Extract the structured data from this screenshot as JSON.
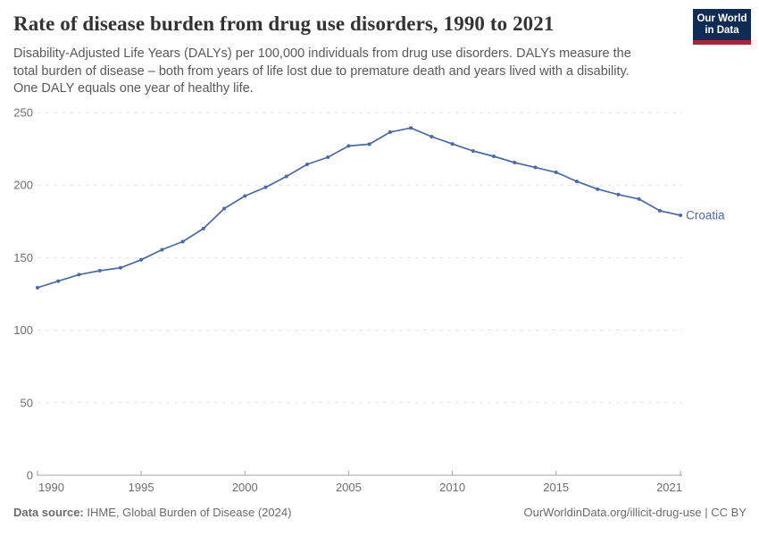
{
  "header": {
    "title": "Rate of disease burden from drug use disorders, 1990 to 2021",
    "subtitle_lines": [
      "Disability-Adjusted Life Years (DALYs) per 100,000 individuals from drug use disorders. DALYs measure the",
      "total burden of disease – both from years of life lost due to premature death and years lived with a disability.",
      "One DALY equals one year of healthy life."
    ],
    "logo": {
      "line1": "Our World",
      "line2": "in Data"
    }
  },
  "chart_data": {
    "type": "line",
    "title": "Rate of disease burden from drug use disorders, 1990 to 2021",
    "xlabel": "",
    "ylabel": "DALYs per 100,000 individuals",
    "xlim": [
      1990,
      2021
    ],
    "ylim": [
      0,
      250
    ],
    "x_ticks": [
      1990,
      1995,
      2000,
      2005,
      2010,
      2015,
      2021
    ],
    "y_ticks": [
      0,
      50,
      100,
      150,
      200,
      250
    ],
    "grid": "horizontal-dashed",
    "legend_position": "end-of-line-label",
    "x": [
      1990,
      1991,
      1992,
      1993,
      1994,
      1995,
      1996,
      1997,
      1998,
      1999,
      2000,
      2001,
      2002,
      2003,
      2004,
      2005,
      2006,
      2007,
      2008,
      2009,
      2010,
      2011,
      2012,
      2013,
      2014,
      2015,
      2016,
      2017,
      2018,
      2019,
      2020,
      2021
    ],
    "series": [
      {
        "name": "Croatia",
        "color": "#4b69a5",
        "values": [
          129.3,
          133.8,
          138.3,
          141.0,
          143.0,
          148.5,
          155.5,
          161.0,
          170.0,
          183.8,
          192.5,
          198.5,
          206.0,
          214.3,
          219.2,
          227.0,
          228.2,
          236.5,
          239.4,
          233.4,
          228.4,
          223.5,
          219.8,
          215.5,
          212.2,
          208.8,
          202.5,
          197.2,
          193.5,
          190.4,
          182.3,
          179.2
        ]
      }
    ]
  },
  "footer": {
    "source_label": "Data source:",
    "source_text": "IHME, Global Burden of Disease (2024)",
    "credit": "OurWorldinData.org/illicit-drug-use | CC BY"
  },
  "colors": {
    "line": "#4b69a5",
    "grid": "#e3e3e3",
    "axis": "#a3a3a3",
    "tick_label": "#6e6e6e",
    "title": "#333333",
    "subtitle": "#595959",
    "logo_bg": "#102c54",
    "logo_accent": "#a32639"
  }
}
